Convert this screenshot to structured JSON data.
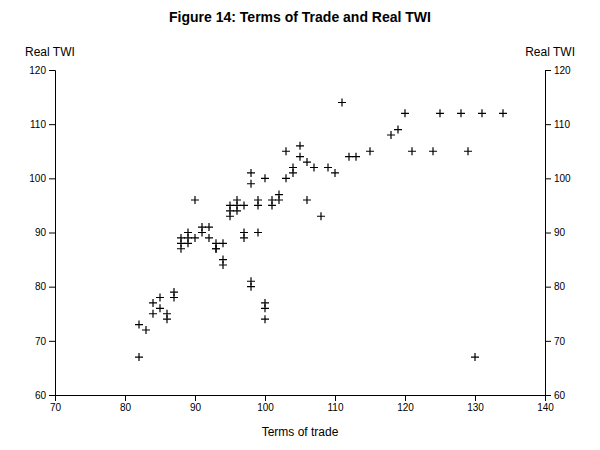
{
  "chart_data": {
    "type": "scatter",
    "title": "Figure 14: Terms of Trade and Real TWI",
    "x_label": "Terms of trade",
    "y_label": "Real TWI",
    "y2_label": "Real TWI",
    "color": "#000000",
    "marker": "plus",
    "grid": false,
    "xlim": [
      70,
      140
    ],
    "xticks": [
      70,
      80,
      90,
      100,
      110,
      120,
      130,
      140
    ],
    "ylim": [
      60,
      120
    ],
    "yticks": [
      60,
      70,
      80,
      90,
      100,
      110,
      120
    ],
    "y2lim": [
      60,
      120
    ],
    "y2ticks": [
      60,
      70,
      80,
      90,
      100,
      110,
      120
    ],
    "x": [
      82,
      82,
      83,
      84,
      84,
      85,
      85,
      86,
      86,
      87,
      87,
      88,
      88,
      88,
      89,
      89,
      89,
      90,
      90,
      91,
      91,
      92,
      92,
      93,
      93,
      93,
      94,
      94,
      94,
      95,
      95,
      95,
      96,
      96,
      96,
      97,
      97,
      97,
      98,
      98,
      98,
      98,
      99,
      99,
      99,
      100,
      100,
      100,
      100,
      101,
      101,
      102,
      102,
      103,
      103,
      104,
      104,
      105,
      105,
      106,
      106,
      107,
      108,
      109,
      110,
      111,
      112,
      113,
      115,
      118,
      119,
      120,
      121,
      124,
      125,
      128,
      129,
      130,
      131,
      134
    ],
    "values": [
      67,
      73,
      72,
      75,
      77,
      76,
      78,
      74,
      75,
      78,
      79,
      87,
      88,
      89,
      88,
      89,
      90,
      89,
      96,
      90,
      91,
      89,
      91,
      87,
      87,
      88,
      84,
      85,
      88,
      93,
      94,
      95,
      94,
      95,
      96,
      89,
      90,
      95,
      80,
      81,
      99,
      101,
      90,
      95,
      96,
      74,
      76,
      77,
      100,
      95,
      96,
      96,
      97,
      100,
      105,
      101,
      102,
      104,
      106,
      96,
      103,
      102,
      93,
      102,
      101,
      114,
      104,
      104,
      105,
      108,
      109,
      112,
      105,
      105,
      112,
      112,
      105,
      67,
      112,
      112
    ]
  }
}
